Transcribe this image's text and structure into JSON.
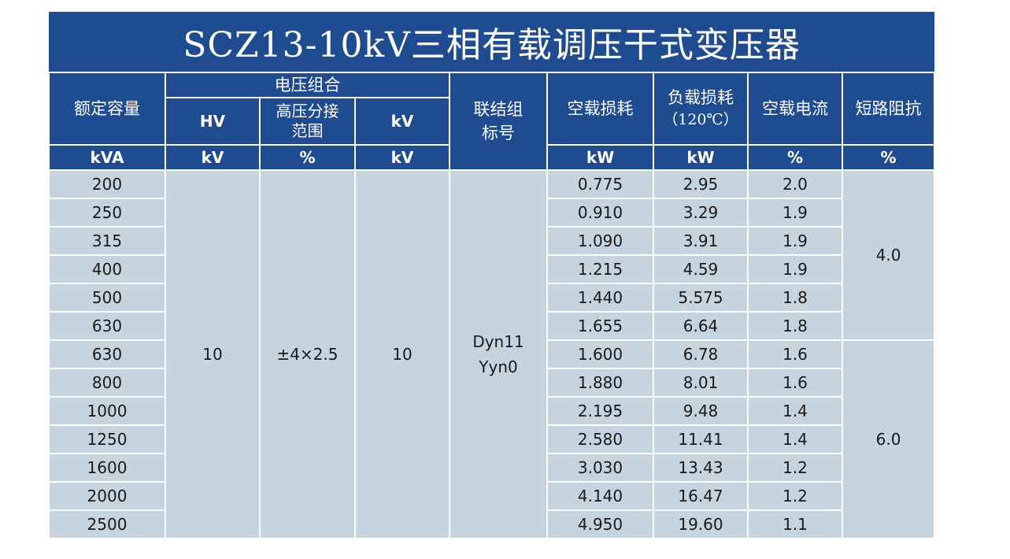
{
  "title": "SCZ13-10kV三相有载调压干式变压器",
  "header": {
    "rated_capacity": "额定容量",
    "voltage_combination": "电压组合",
    "hv": "HV",
    "tap_range": "高压分接范围",
    "lv": "kV",
    "connection_group": "联结组标号",
    "noload_loss": "空载损耗",
    "load_loss_line1": "负载损耗",
    "load_loss_line2": "（120℃）",
    "noload_current": "空载电流",
    "impedance": "短路阻抗"
  },
  "units": {
    "capacity": "kVA",
    "hv": "kV",
    "tap": "%",
    "lv": "kV",
    "noload_loss": "kW",
    "load_loss": "kW",
    "noload_current": "%",
    "impedance": "%"
  },
  "merged": {
    "hv_value": "10",
    "tap_value": "±4×2.5",
    "lv_value": "10",
    "connection_line1": "Dyn11",
    "connection_line2": "Yyn0",
    "impedance_group1": "4.0",
    "impedance_group2": "6.0"
  },
  "rows": [
    {
      "capacity": "200",
      "noload_loss": "0.775",
      "load_loss": "2.95",
      "noload_current": "2.0"
    },
    {
      "capacity": "250",
      "noload_loss": "0.910",
      "load_loss": "3.29",
      "noload_current": "1.9"
    },
    {
      "capacity": "315",
      "noload_loss": "1.090",
      "load_loss": "3.91",
      "noload_current": "1.9"
    },
    {
      "capacity": "400",
      "noload_loss": "1.215",
      "load_loss": "4.59",
      "noload_current": "1.9"
    },
    {
      "capacity": "500",
      "noload_loss": "1.440",
      "load_loss": "5.575",
      "noload_current": "1.8"
    },
    {
      "capacity": "630",
      "noload_loss": "1.655",
      "load_loss": "6.64",
      "noload_current": "1.8"
    },
    {
      "capacity": "630",
      "noload_loss": "1.600",
      "load_loss": "6.78",
      "noload_current": "1.6"
    },
    {
      "capacity": "800",
      "noload_loss": "1.880",
      "load_loss": "8.01",
      "noload_current": "1.6"
    },
    {
      "capacity": "1000",
      "noload_loss": "2.195",
      "load_loss": "9.48",
      "noload_current": "1.4"
    },
    {
      "capacity": "1250",
      "noload_loss": "2.580",
      "load_loss": "11.41",
      "noload_current": "1.4"
    },
    {
      "capacity": "1600",
      "noload_loss": "3.030",
      "load_loss": "13.43",
      "noload_current": "1.2"
    },
    {
      "capacity": "2000",
      "noload_loss": "4.140",
      "load_loss": "16.47",
      "noload_current": "1.2"
    },
    {
      "capacity": "2500",
      "noload_loss": "4.950",
      "load_loss": "19.60",
      "noload_current": "1.1"
    }
  ]
}
